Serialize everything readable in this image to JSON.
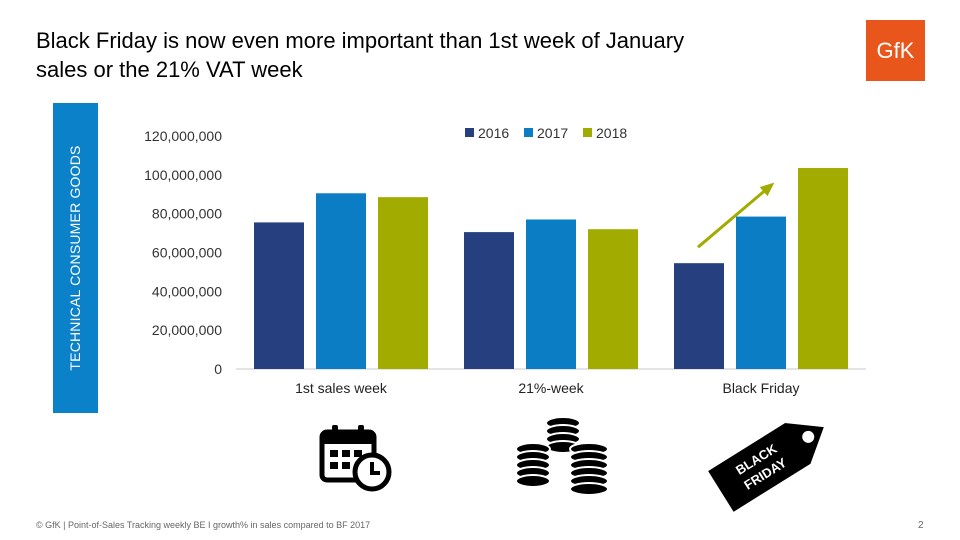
{
  "title": "Black Friday is now even more important than 1st week of January sales or the 21% VAT week",
  "logo_text": "GfK",
  "side_label": "TECHNICAL CONSUMER GOODS",
  "footer": "© GfK | Point-of-Sales Tracking weekly BE I growth% in sales compared to BF 2017",
  "page_number": "2",
  "colors": {
    "brand": "#e8561c",
    "side_bar": "#0a81c9",
    "series_2016": "#253f7f",
    "series_2017": "#0a7dc4",
    "series_2018": "#a2ac00",
    "arrow": "#a2ac00"
  },
  "icons": [
    "calendar-clock-icon",
    "coin-stacks-icon",
    "black-friday-tag-icon"
  ],
  "tag_text": [
    "BLACK",
    "FRIDAY"
  ],
  "chart_data": {
    "type": "bar",
    "categories": [
      "1st sales week",
      "21%-week",
      "Black Friday"
    ],
    "series": [
      {
        "name": "2016",
        "color": "#253f7f",
        "values": [
          75500000,
          70500000,
          54500000
        ]
      },
      {
        "name": "2017",
        "color": "#0a7dc4",
        "values": [
          90500000,
          77000000,
          78500000
        ]
      },
      {
        "name": "2018",
        "color": "#a2ac00",
        "values": [
          88500000,
          72000000,
          103500000
        ]
      }
    ],
    "yticks": [
      "0",
      "20,000,000",
      "40,000,000",
      "60,000,000",
      "80,000,000",
      "100,000,000",
      "120,000,000"
    ],
    "ylim": [
      0,
      120000000
    ],
    "legend_position": "top",
    "grid": false
  }
}
